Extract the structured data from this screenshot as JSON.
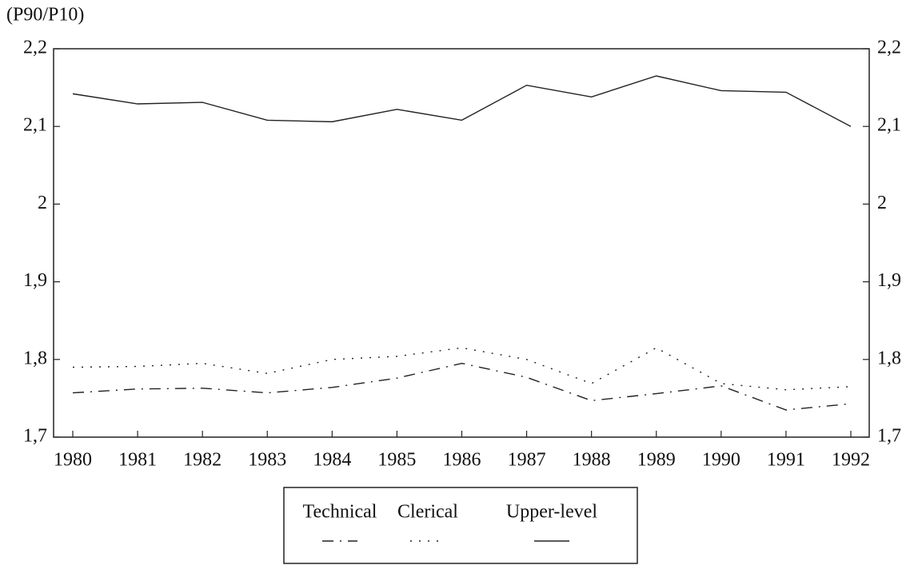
{
  "chart_data": {
    "type": "line",
    "y_label": "(P90/P10)",
    "categories": [
      "1980",
      "1981",
      "1982",
      "1983",
      "1984",
      "1985",
      "1986",
      "1987",
      "1988",
      "1989",
      "1990",
      "1991",
      "1992"
    ],
    "series": [
      {
        "name": "Technical",
        "color": "#222222",
        "dash": "dash-dot",
        "values": [
          1.757,
          1.762,
          1.763,
          1.757,
          1.764,
          1.776,
          1.795,
          1.777,
          1.747,
          1.756,
          1.766,
          1.735,
          1.743
        ]
      },
      {
        "name": "Clerical",
        "color": "#222222",
        "dash": "dotted",
        "values": [
          1.79,
          1.791,
          1.795,
          1.782,
          1.8,
          1.804,
          1.815,
          1.8,
          1.769,
          1.815,
          1.769,
          1.761,
          1.765
        ]
      },
      {
        "name": "Upper-level",
        "color": "#222222",
        "dash": "solid",
        "values": [
          2.142,
          2.129,
          2.131,
          2.108,
          2.106,
          2.122,
          2.108,
          2.153,
          2.138,
          2.165,
          2.146,
          2.144,
          2.1
        ]
      }
    ],
    "ylim": [
      1.7,
      2.2
    ],
    "yticks": [
      {
        "value": 2.2,
        "label": "2,2"
      },
      {
        "value": 2.1,
        "label": "2,1"
      },
      2,
      {
        "value": 1.9,
        "label": "1,9"
      },
      {
        "value": 1.8,
        "label": "1,8"
      },
      {
        "value": 1.7,
        "label": "1,7"
      }
    ],
    "y2lim": [
      1.7,
      2.2
    ],
    "y2ticks": [
      {
        "value": 2.2,
        "label": "2,2"
      },
      {
        "value": 2.1,
        "label": "2,1"
      },
      2,
      {
        "value": 1.9,
        "label": "1,9"
      },
      {
        "value": 1.8,
        "label": "1,8"
      },
      {
        "value": 1.7,
        "label": "1,7"
      }
    ],
    "legend": "bottom"
  }
}
